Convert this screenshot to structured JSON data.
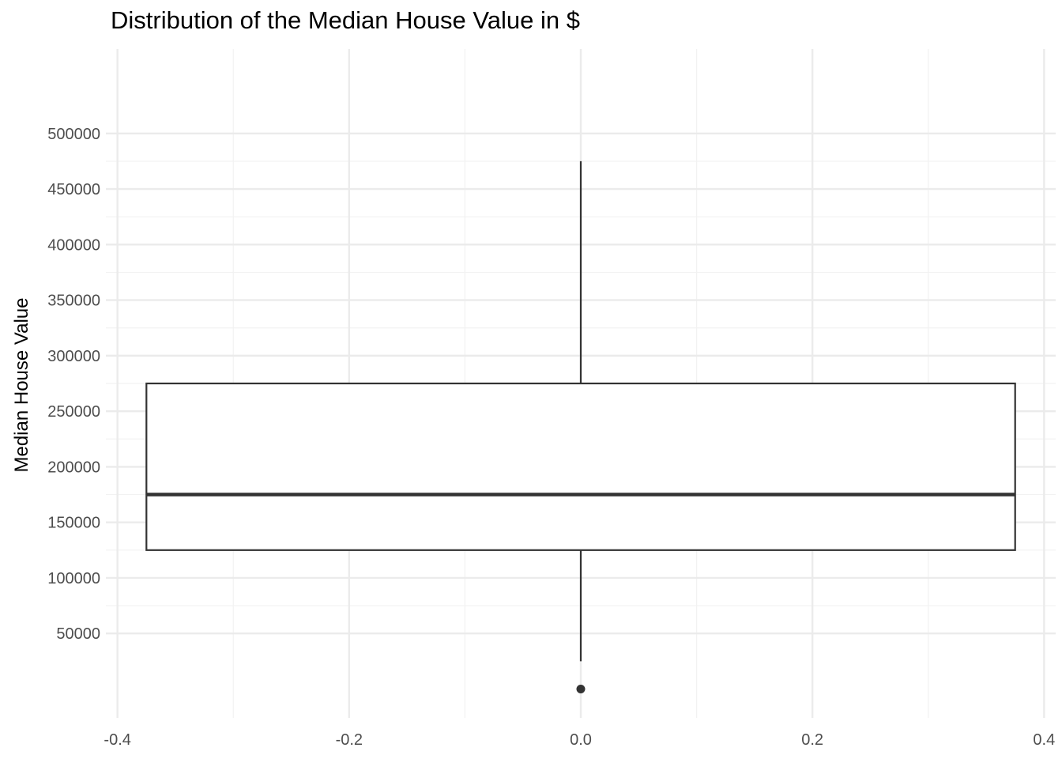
{
  "chart_data": {
    "type": "boxplot",
    "title": "Distribution of the Median House Value in $",
    "xlabel": "",
    "ylabel": "Median House Value",
    "xlim": [
      -0.41,
      0.41
    ],
    "ylim": [
      -26000,
      576000
    ],
    "x_ticks": [
      -0.4,
      -0.2,
      0.0,
      0.2,
      0.4
    ],
    "x_tick_labels": [
      "-0.4",
      "-0.2",
      "0.0",
      "0.2",
      "0.4"
    ],
    "x_minor_ticks": [
      -0.3,
      -0.1,
      0.1,
      0.3
    ],
    "y_ticks": [
      50000,
      100000,
      150000,
      200000,
      250000,
      300000,
      350000,
      400000,
      450000,
      500000
    ],
    "y_tick_labels": [
      "50000",
      "100000",
      "150000",
      "200000",
      "250000",
      "300000",
      "350000",
      "400000",
      "450000",
      "500000"
    ],
    "y_minor_ticks": [
      75000,
      125000,
      175000,
      225000,
      275000,
      325000,
      375000,
      425000,
      475000
    ],
    "grid": true,
    "box": {
      "x_center": 0.0,
      "x_left": -0.375,
      "x_right": 0.375,
      "whisker_low": 25000,
      "q1": 125000,
      "median": 175000,
      "q3": 275000,
      "whisker_high": 475000
    },
    "outliers": [
      0
    ],
    "colors": {
      "grid_major": "#ebebeb",
      "grid_minor": "#f2f2f2",
      "box_line": "#333333",
      "box_fill": "#ffffff",
      "tick_text": "#4d4d4d",
      "title_text": "#000000"
    }
  }
}
